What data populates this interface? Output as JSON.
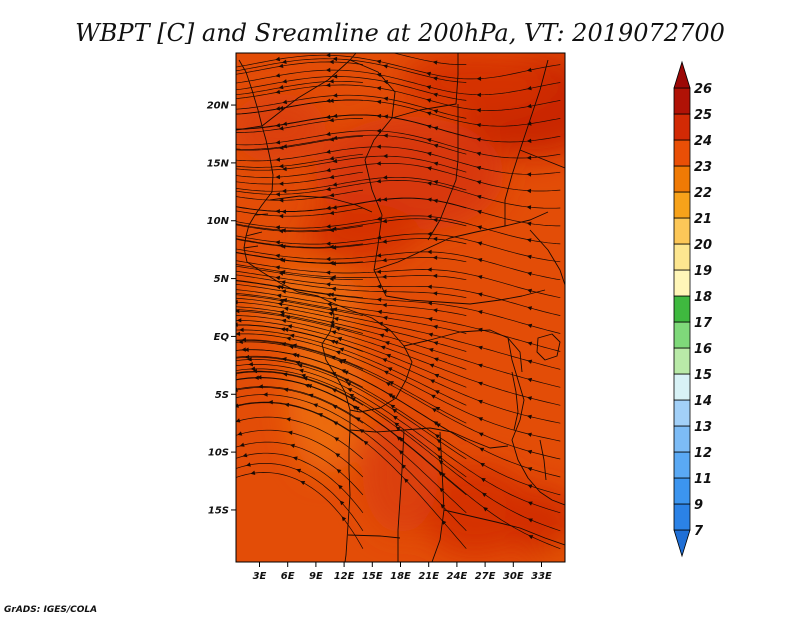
{
  "chart_data": {
    "type": "heatmap",
    "title": "WBPT [C] and Sreamline at 200hPa, VT: 2019072700",
    "x_tick_labels": [
      "3E",
      "6E",
      "9E",
      "12E",
      "15E",
      "18E",
      "21E",
      "24E",
      "27E",
      "30E",
      "33E"
    ],
    "x_tick_values": [
      3,
      6,
      9,
      12,
      15,
      18,
      21,
      24,
      27,
      30,
      33
    ],
    "y_tick_labels": [
      "20N",
      "15N",
      "10N",
      "5N",
      "EQ",
      "5S",
      "10S",
      "15S"
    ],
    "y_tick_values": [
      20,
      15,
      10,
      5,
      0,
      -5,
      -10,
      -15
    ],
    "xlim": [
      0.5,
      35.5
    ],
    "ylim": [
      -19.5,
      24.5
    ],
    "colorbar": {
      "levels": [
        "7",
        "9",
        "11",
        "12",
        "13",
        "14",
        "15",
        "16",
        "17",
        "18",
        "19",
        "20",
        "21",
        "22",
        "23",
        "24",
        "25",
        "26"
      ],
      "colors": [
        "#1f6fd6",
        "#2b82e6",
        "#3c95ef",
        "#5aa9f4",
        "#7dbcf6",
        "#a2d0f8",
        "#d8f2f6",
        "#b9eaa8",
        "#7fd97a",
        "#3fb93f",
        "#fff6b8",
        "#fde690",
        "#fcc758",
        "#f7a21a",
        "#f07a05",
        "#e94f06",
        "#d22a05",
        "#b01206",
        "#9c0806"
      ]
    },
    "field": {
      "background_color": "#e34d07",
      "cool_patches": [
        {
          "lon": 10,
          "lat": -5,
          "rx": 4,
          "ry": 7,
          "color": "#ec6a09"
        },
        {
          "lon": 8,
          "lat": 3,
          "rx": 6,
          "ry": 3,
          "color": "#ec6a09"
        },
        {
          "lon": 34,
          "lat": -17,
          "rx": 3,
          "ry": 2.5,
          "color": "#ec6a09"
        }
      ],
      "warm_patches": [
        {
          "lon": 32,
          "lat": 20,
          "rx": 8,
          "ry": 4.5,
          "color": "#c92606"
        },
        {
          "lon": 26,
          "lat": 22,
          "rx": 8,
          "ry": 2.5,
          "color": "#d53306"
        },
        {
          "lon": 19,
          "lat": 14,
          "rx": 10,
          "ry": 5,
          "color": "#d83808"
        },
        {
          "lon": 14,
          "lat": 9,
          "rx": 6,
          "ry": 2.5,
          "color": "#d53306"
        },
        {
          "lon": 26,
          "lat": -15,
          "rx": 6,
          "ry": 4,
          "color": "#d53306"
        },
        {
          "lon": 33,
          "lat": -16,
          "rx": 4,
          "ry": 3,
          "color": "#d22d06"
        },
        {
          "lon": 5,
          "lat": 18,
          "rx": 5,
          "ry": 3,
          "color": "#db4108"
        },
        {
          "lon": 18,
          "lat": -12,
          "rx": 4,
          "ry": 5,
          "color": "#db4108"
        }
      ]
    }
  },
  "credit": "GrADS: IGES/COLA"
}
